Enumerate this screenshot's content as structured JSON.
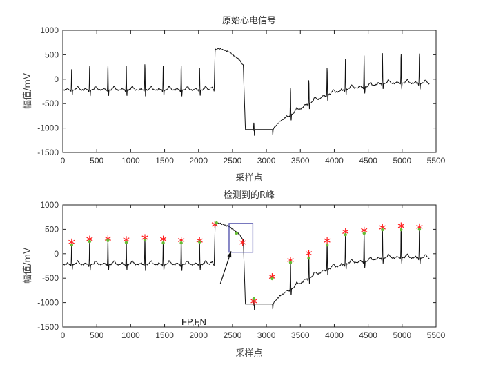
{
  "chart_data": [
    {
      "type": "line",
      "title": "原始心电信号",
      "xlabel": "采样点",
      "ylabel": "幅值/mV",
      "xlim": [
        0,
        5500
      ],
      "ylim": [
        -1500,
        1000
      ],
      "xticks": [
        0,
        500,
        1000,
        1500,
        2000,
        2500,
        3000,
        3500,
        4000,
        4500,
        5000,
        5500
      ],
      "yticks": [
        1000,
        500,
        0,
        -500,
        -1000,
        -1500
      ],
      "grid": false,
      "series": [
        {
          "name": "ECG",
          "color": "#111111"
        }
      ],
      "baseline": [
        [
          0,
          -220
        ],
        [
          2150,
          -220
        ],
        [
          2200,
          -160
        ],
        [
          2230,
          -250
        ],
        [
          2245,
          600
        ],
        [
          2300,
          630
        ],
        [
          2450,
          560
        ],
        [
          2600,
          400
        ],
        [
          2660,
          280
        ],
        [
          2690,
          -1030
        ],
        [
          3090,
          -1030
        ],
        [
          3200,
          -860
        ],
        [
          3400,
          -700
        ],
        [
          3600,
          -520
        ],
        [
          3900,
          -320
        ],
        [
          4200,
          -200
        ],
        [
          4500,
          -150
        ],
        [
          4700,
          -90
        ],
        [
          5000,
          -80
        ],
        [
          5400,
          -90
        ]
      ],
      "beats": [
        [
          130,
          240
        ],
        [
          395,
          300
        ],
        [
          665,
          320
        ],
        [
          935,
          300
        ],
        [
          1210,
          330
        ],
        [
          1480,
          300
        ],
        [
          1745,
          290
        ],
        [
          2015,
          270
        ],
        [
          2815,
          -880
        ],
        [
          3085,
          -470
        ],
        [
          3355,
          -130
        ],
        [
          3625,
          0
        ],
        [
          3895,
          270
        ],
        [
          4165,
          450
        ],
        [
          4440,
          480
        ],
        [
          4710,
          540
        ],
        [
          4985,
          560
        ],
        [
          5255,
          560
        ]
      ]
    },
    {
      "type": "line",
      "title": "检测到的R峰",
      "xlabel": "采样点",
      "ylabel": "幅值/mV",
      "xlim": [
        0,
        5500
      ],
      "ylim": [
        -1500,
        1000
      ],
      "xticks": [
        0,
        500,
        1000,
        1500,
        2000,
        2500,
        3000,
        3500,
        4000,
        4500,
        5000,
        5500
      ],
      "yticks": [
        1000,
        500,
        0,
        -500,
        -1000,
        -1500
      ],
      "grid": false,
      "series": [
        {
          "name": "ECG",
          "color": "#111111"
        },
        {
          "name": "detected R peaks",
          "marker": "asterisk",
          "color": "#ff2020",
          "points": [
            [
              130,
              240
            ],
            [
              395,
              300
            ],
            [
              665,
              310
            ],
            [
              935,
              290
            ],
            [
              1210,
              330
            ],
            [
              1480,
              300
            ],
            [
              1745,
              280
            ],
            [
              2015,
              270
            ],
            [
              2240,
              600
            ],
            [
              2650,
              230
            ],
            [
              2815,
              -970
            ],
            [
              3085,
              -470
            ],
            [
              3355,
              -130
            ],
            [
              3625,
              10
            ],
            [
              3895,
              270
            ],
            [
              4165,
              450
            ],
            [
              4440,
              480
            ],
            [
              4710,
              540
            ],
            [
              4985,
              570
            ],
            [
              5255,
              550
            ]
          ]
        },
        {
          "name": "reference R peaks",
          "marker": "dot",
          "color": "#66bb33",
          "points": [
            [
              130,
              180
            ],
            [
              395,
              250
            ],
            [
              665,
              270
            ],
            [
              935,
              230
            ],
            [
              1210,
              280
            ],
            [
              1480,
              220
            ],
            [
              1745,
              220
            ],
            [
              2015,
              240
            ],
            [
              2265,
              630
            ],
            [
              2560,
              420
            ],
            [
              2815,
              -920
            ],
            [
              3085,
              -510
            ],
            [
              3355,
              -180
            ],
            [
              3625,
              -90
            ],
            [
              3895,
              180
            ],
            [
              4165,
              390
            ],
            [
              4440,
              420
            ],
            [
              4710,
              490
            ],
            [
              4985,
              490
            ],
            [
              5255,
              500
            ]
          ]
        }
      ],
      "annotation": {
        "text": "FP,FN",
        "box": {
          "x": [
            2450,
            2800
          ],
          "y": [
            30,
            620
          ]
        },
        "box_color": "#4a4aa8",
        "arrow_from": [
          2320,
          -620
        ],
        "arrow_to": [
          2480,
          50
        ]
      }
    }
  ]
}
